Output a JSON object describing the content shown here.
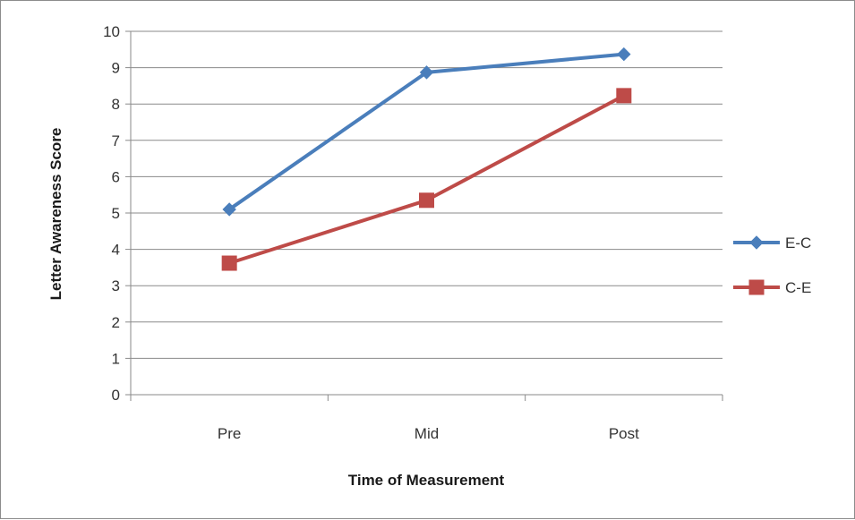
{
  "chart_data": {
    "type": "line",
    "categories": [
      "Pre",
      "Mid",
      "Post"
    ],
    "series": [
      {
        "name": "E-C",
        "values": [
          5.1,
          8.87,
          9.37
        ],
        "color": "#4a7ebb",
        "marker": "diamond"
      },
      {
        "name": "C-E",
        "values": [
          3.62,
          5.35,
          8.23
        ],
        "color": "#be4b48",
        "marker": "square"
      }
    ],
    "title": "",
    "xlabel": "Time of Measurement",
    "ylabel": "Letter Awareness Score",
    "ylim": [
      0,
      10
    ],
    "yticks": [
      "0",
      "1",
      "2",
      "3",
      "4",
      "5",
      "6",
      "7",
      "8",
      "9",
      "10"
    ],
    "grid": "horizontal",
    "legend": "right"
  }
}
